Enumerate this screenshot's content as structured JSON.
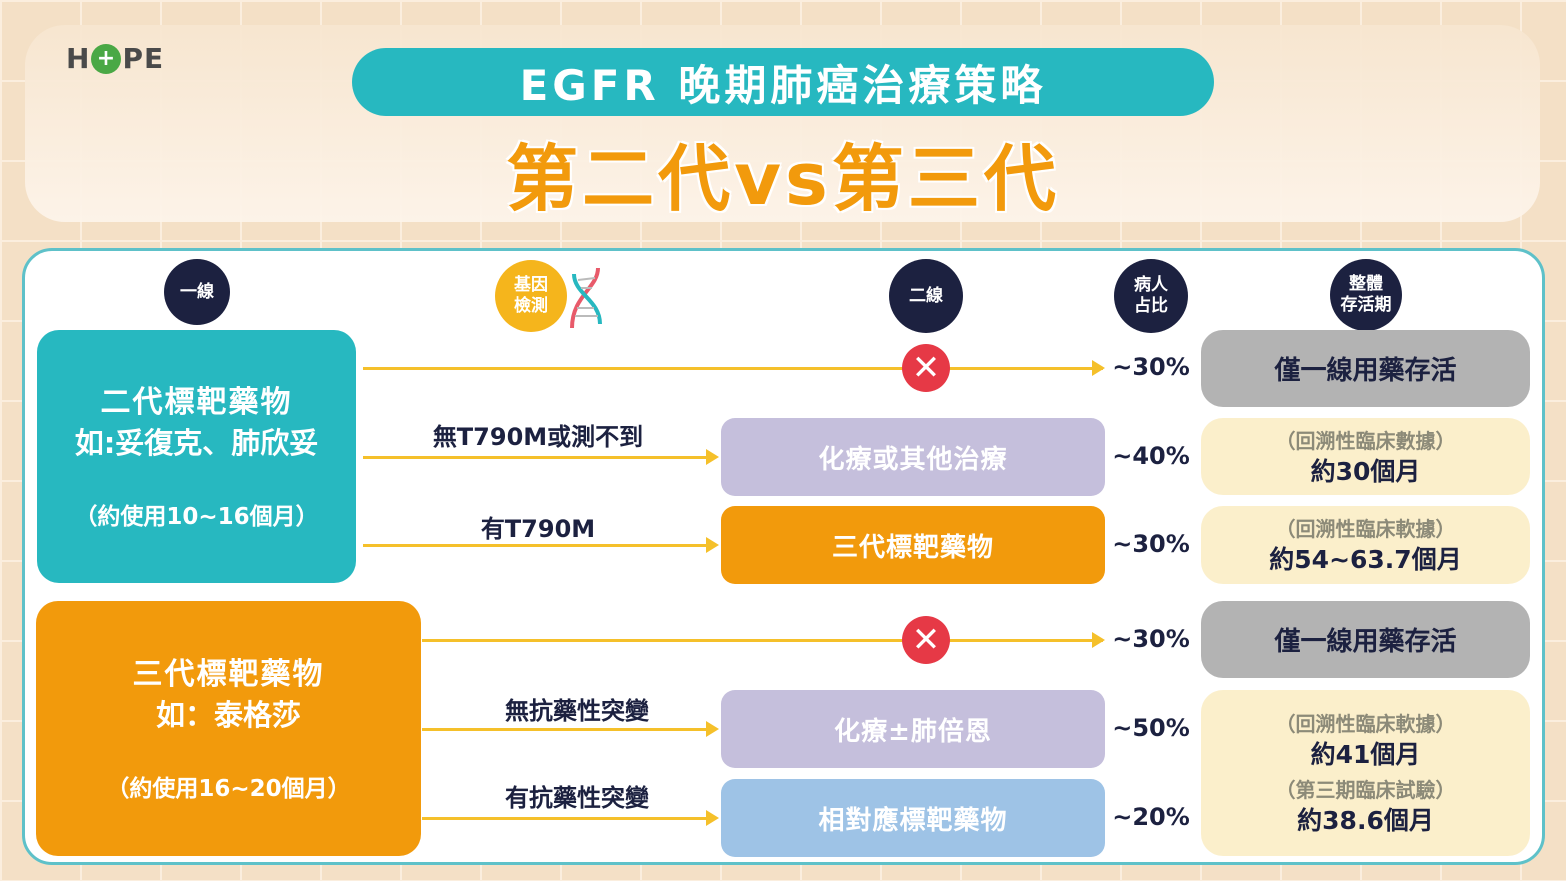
{
  "logo": {
    "text_left": "H",
    "text_right": "PE",
    "icon": "heart-plus-icon"
  },
  "header": {
    "title": "EGFR 晚期肺癌治療策略",
    "subtitle": "第二代vs第三代"
  },
  "columns": {
    "first_line": "一線",
    "gene_test_1": "基因",
    "gene_test_2": "檢測",
    "second_line": "二線",
    "ratio_1": "病人",
    "ratio_2": "占比",
    "os_1": "整體",
    "os_2": "存活期"
  },
  "gen2": {
    "title": "二代標靶藥物",
    "example": "如:妥復克、肺欣妥",
    "duration": "（約使用10~16個月）",
    "paths": [
      {
        "condition": "",
        "treatment": "",
        "percent": "~30%",
        "outcome": "僅一線用藥存活",
        "note": ""
      },
      {
        "condition": "無T790M或測不到",
        "treatment": "化療或其他治療",
        "percent": "~40%",
        "note": "（回溯性臨床數據）",
        "outcome": "約30個月"
      },
      {
        "condition": "有T790M",
        "treatment": "三代標靶藥物",
        "percent": "~30%",
        "note": "（回溯性臨床軟據）",
        "outcome": "約54~63.7個月"
      }
    ]
  },
  "gen3": {
    "title": "三代標靶藥物",
    "example": "如：泰格莎",
    "duration": "（約使用16~20個月）",
    "paths": [
      {
        "condition": "",
        "treatment": "",
        "percent": "~30%",
        "outcome": "僅一線用藥存活"
      },
      {
        "condition": "無抗藥性突變",
        "treatment": "化療±肺倍恩",
        "percent": "~50%"
      },
      {
        "condition": "有抗藥性突變",
        "treatment": "相對應標靶藥物",
        "percent": "~20%"
      }
    ],
    "os": [
      {
        "note": "（回溯性臨床軟據）",
        "value": "約41個月"
      },
      {
        "note": "（第三期臨床試驗）",
        "value": "約38.6個月"
      }
    ]
  },
  "colors": {
    "teal": "#27b8c0",
    "orange": "#f29a0c",
    "navy": "#1c2140",
    "yellow": "#f5c02a",
    "red": "#e63946",
    "purple": "#c5bfdc",
    "blue": "#9ec3e6",
    "gray": "#b3b3b3",
    "cream": "#fbefcb"
  }
}
